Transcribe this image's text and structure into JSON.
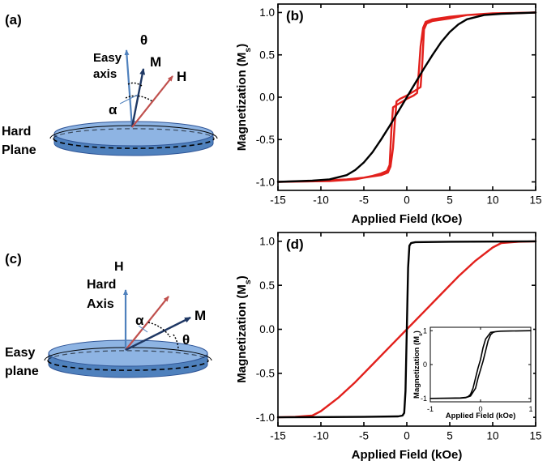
{
  "figure": {
    "panels": {
      "a": {
        "label": "(a)",
        "easy_axis_label_1": "Easy",
        "easy_axis_label_2": "axis",
        "theta": "θ",
        "m": "M",
        "h": "H",
        "alpha": "α",
        "hard_plane_1": "Hard",
        "hard_plane_2": "Plane"
      },
      "c": {
        "label": "(c)",
        "h": "H",
        "hard_axis_1": "Hard",
        "hard_axis_2": "Axis",
        "alpha": "α",
        "m": "M",
        "theta": "θ",
        "easy_plane_1": "Easy",
        "easy_plane_2": "plane"
      }
    },
    "colors": {
      "disk_top": "#8eb4e3",
      "disk_side": "#4f81bd",
      "easy_arrow": "#4f81bd",
      "m_arrow": "#1f3864",
      "h_arrow": "#c0504d",
      "red_curve": "#e2201c",
      "black_curve": "#000000"
    }
  },
  "chart_data": [
    {
      "panel_label": "(b)",
      "type": "line",
      "title": "",
      "xlabel": "Applied Field (kOe)",
      "ylabel": "Magnetization (M",
      "ylabel_sub": "s",
      "ylabel_close": ")",
      "xlim": [
        -15,
        15
      ],
      "ylim": [
        -1.1,
        1.1
      ],
      "xticks": [
        -15,
        -10,
        -5,
        0,
        5,
        10,
        15
      ],
      "yticks": [
        -1.0,
        -0.5,
        0.0,
        0.5,
        1.0
      ],
      "xtick_labels": [
        "-15",
        "-10",
        "-5",
        "0",
        "5",
        "10",
        "15"
      ],
      "ytick_labels": [
        "-1.0",
        "-0.5",
        "0.0",
        "0.5",
        "1.0"
      ],
      "series": [
        {
          "name": "red",
          "color": "#e2201c",
          "x": [
            -15,
            -9,
            -6,
            -4,
            -3,
            -2.3,
            -2.0,
            -1.8,
            -1.6,
            -1.0,
            0.0,
            0.8,
            1.2,
            1.4,
            1.6,
            1.9,
            2.2,
            3,
            5,
            7,
            10,
            15,
            10,
            7,
            5,
            3,
            2.3,
            2.0,
            1.8,
            1.6,
            1.0,
            0.0,
            -0.8,
            -1.2,
            -1.4,
            -1.6,
            -1.9,
            -2.2,
            -3,
            -5,
            -7,
            -10,
            -15
          ],
          "y": [
            -1.0,
            -0.99,
            -0.97,
            -0.93,
            -0.9,
            -0.87,
            -0.8,
            -0.4,
            -0.12,
            -0.08,
            -0.02,
            0.02,
            0.05,
            0.3,
            0.6,
            0.82,
            0.89,
            0.92,
            0.95,
            0.97,
            0.985,
            1.0,
            0.99,
            0.97,
            0.93,
            0.9,
            0.87,
            0.8,
            0.4,
            0.12,
            0.08,
            0.02,
            -0.02,
            -0.05,
            -0.3,
            -0.6,
            -0.82,
            -0.89,
            -0.92,
            -0.95,
            -0.97,
            -0.985,
            -1.0
          ]
        },
        {
          "name": "black",
          "color": "#000000",
          "x": [
            -15,
            -11,
            -9,
            -7,
            -6,
            -5,
            -4,
            -3,
            -2,
            -1,
            0,
            1,
            2,
            3,
            4,
            5,
            6,
            7,
            9,
            11,
            15
          ],
          "y": [
            -1.0,
            -0.985,
            -0.97,
            -0.92,
            -0.86,
            -0.77,
            -0.65,
            -0.5,
            -0.34,
            -0.17,
            0.0,
            0.17,
            0.34,
            0.5,
            0.65,
            0.77,
            0.86,
            0.92,
            0.97,
            0.985,
            1.0
          ]
        }
      ]
    },
    {
      "panel_label": "(d)",
      "type": "line",
      "title": "",
      "xlabel": "Applied Field (kOe)",
      "ylabel": "Magnetization (M",
      "ylabel_sub": "s",
      "ylabel_close": ")",
      "xlim": [
        -15,
        15
      ],
      "ylim": [
        -1.1,
        1.1
      ],
      "xticks": [
        -15,
        -10,
        -5,
        0,
        5,
        10,
        15
      ],
      "yticks": [
        -1.0,
        -0.5,
        0.0,
        0.5,
        1.0
      ],
      "xtick_labels": [
        "-15",
        "-10",
        "-5",
        "0",
        "5",
        "10",
        "15"
      ],
      "ytick_labels": [
        "-1.0",
        "-0.5",
        "0.0",
        "0.5",
        "1.0"
      ],
      "series": [
        {
          "name": "red",
          "color": "#e2201c",
          "x": [
            -15,
            -13,
            -11,
            -10,
            -8,
            -6,
            -4,
            -2,
            0,
            2,
            4,
            6,
            8,
            10,
            11,
            13,
            15
          ],
          "y": [
            -1.0,
            -0.995,
            -0.98,
            -0.93,
            -0.78,
            -0.6,
            -0.4,
            -0.2,
            0.0,
            0.2,
            0.4,
            0.6,
            0.78,
            0.93,
            0.98,
            0.995,
            1.0
          ]
        },
        {
          "name": "black",
          "color": "#000000",
          "x": [
            -15,
            -5,
            -1,
            -0.5,
            -0.3,
            -0.15,
            0.0,
            0.15,
            0.3,
            0.5,
            1,
            5,
            15
          ],
          "y": [
            -1.0,
            -0.995,
            -0.99,
            -0.98,
            -0.95,
            -0.7,
            0.0,
            0.7,
            0.95,
            0.98,
            0.99,
            0.995,
            1.0
          ]
        }
      ],
      "inset": {
        "type": "line",
        "xlabel": "Applied Field (kOe)",
        "ylabel": "Magnetization (M",
        "ylabel_sub": "s",
        "ylabel_close": ")",
        "xlim": [
          -1,
          1
        ],
        "ylim": [
          -1.1,
          1.1
        ],
        "xticks": [
          -1,
          0,
          1
        ],
        "yticks": [
          -1,
          0,
          1
        ],
        "xtick_labels": [
          "-1",
          "0",
          "1"
        ],
        "ytick_labels": [
          "-1",
          "0",
          "1"
        ],
        "series": [
          {
            "name": "black",
            "color": "#000000",
            "x": [
              -1,
              -0.4,
              -0.3,
              -0.2,
              -0.1,
              -0.05,
              0.0,
              0.05,
              0.1,
              0.15,
              0.2,
              0.25,
              0.3,
              0.4,
              0.6,
              1,
              0.6,
              0.4,
              0.3,
              0.2,
              0.1,
              0.05,
              0.0,
              -0.05,
              -0.1,
              -0.15,
              -0.2,
              -0.25,
              -0.3,
              -0.4,
              -0.6,
              -1
            ],
            "y": [
              -1.0,
              -0.99,
              -0.98,
              -0.93,
              -0.7,
              -0.4,
              -0.15,
              0.1,
              0.4,
              0.7,
              0.88,
              0.95,
              0.97,
              0.985,
              0.99,
              1.0,
              0.99,
              0.985,
              0.97,
              0.95,
              0.75,
              0.5,
              0.15,
              -0.1,
              -0.4,
              -0.7,
              -0.88,
              -0.95,
              -0.97,
              -0.985,
              -0.99,
              -1.0
            ]
          }
        ]
      }
    }
  ]
}
